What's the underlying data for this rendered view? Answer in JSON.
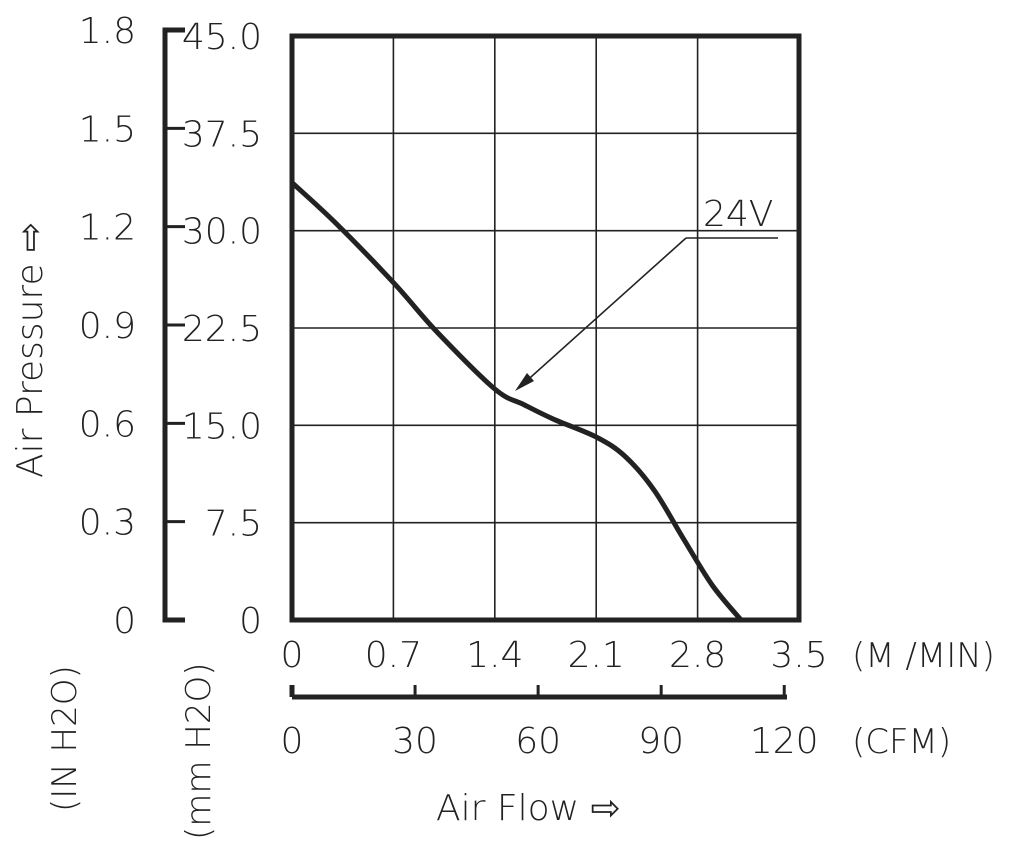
{
  "chart_data": {
    "type": "line",
    "series": [
      {
        "name": "24V",
        "x": [
          0,
          0.3,
          0.7,
          1.0,
          1.4,
          1.6,
          1.8,
          2.1,
          2.3,
          2.5,
          2.7,
          2.9,
          3.1
        ],
        "y": [
          33.7,
          30.6,
          26.0,
          22.2,
          17.8,
          16.6,
          15.5,
          14.1,
          12.6,
          10.0,
          6.3,
          2.7,
          0
        ]
      }
    ],
    "x_axis": {
      "ticks": [
        "0",
        "0.7",
        "1.4",
        "2.1",
        "2.8",
        "3.5"
      ],
      "unit": "(M /MIN)",
      "range": [
        0,
        3.5
      ]
    },
    "x2_axis": {
      "ticks": [
        "0",
        "30",
        "60",
        "90",
        "120"
      ],
      "unit": "(CFM)",
      "range": [
        0,
        123.6
      ]
    },
    "y_axis": {
      "ticks": [
        "0",
        "7.5",
        "15.0",
        "22.5",
        "30.0",
        "37.5",
        "45.0"
      ],
      "unit": "(mm H2O)",
      "range": [
        0,
        45
      ]
    },
    "y2_axis": {
      "ticks": [
        "0",
        "0.3",
        "0.6",
        "0.9",
        "1.2",
        "1.5",
        "1.8"
      ],
      "unit": "(IN H2O)",
      "range": [
        0,
        1.8
      ]
    },
    "xlabel": "Air Flow ⇨",
    "ylabel": "Air Pressure ⇨",
    "annotation": "24V",
    "grid": true
  }
}
